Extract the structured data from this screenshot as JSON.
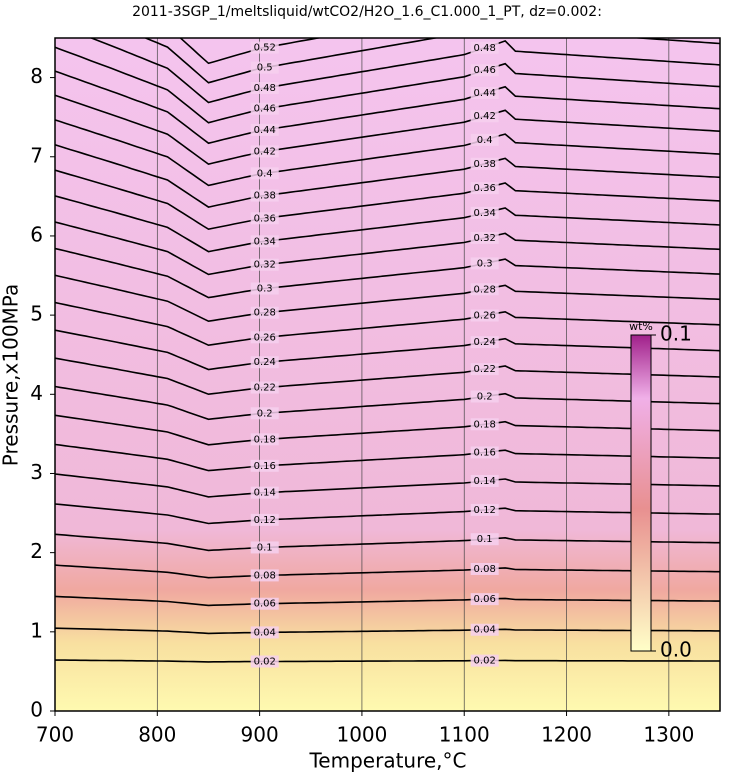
{
  "chart_data": {
    "type": "contour",
    "title": "2011-3SGP_1/meltsliquid/wtCO2/H2O_1.6_C1.000_1_PT, dz=0.002:",
    "x_label": "Temperature,°C",
    "y_label": "Pressure,x100MPa",
    "xlim": [
      700,
      1350
    ],
    "ylim": [
      0,
      8.5
    ],
    "xticks": [
      700,
      800,
      900,
      1000,
      1100,
      1200,
      1300
    ],
    "yticks": [
      0,
      1,
      2,
      3,
      4,
      5,
      6,
      7,
      8
    ],
    "grid": true,
    "levels": [
      0.02,
      0.04,
      0.06,
      0.08,
      0.1,
      0.12,
      0.14,
      0.16,
      0.18,
      0.2,
      0.22,
      0.24,
      0.26,
      0.28,
      0.3,
      0.32,
      0.34,
      0.36,
      0.38,
      0.4,
      0.42,
      0.44,
      0.46,
      0.48,
      0.5,
      0.52
    ],
    "colorbar": {
      "label": "wt%",
      "ticks": [
        {
          "value": 0,
          "label": "0.0"
        },
        0.1
      ]
    }
  }
}
